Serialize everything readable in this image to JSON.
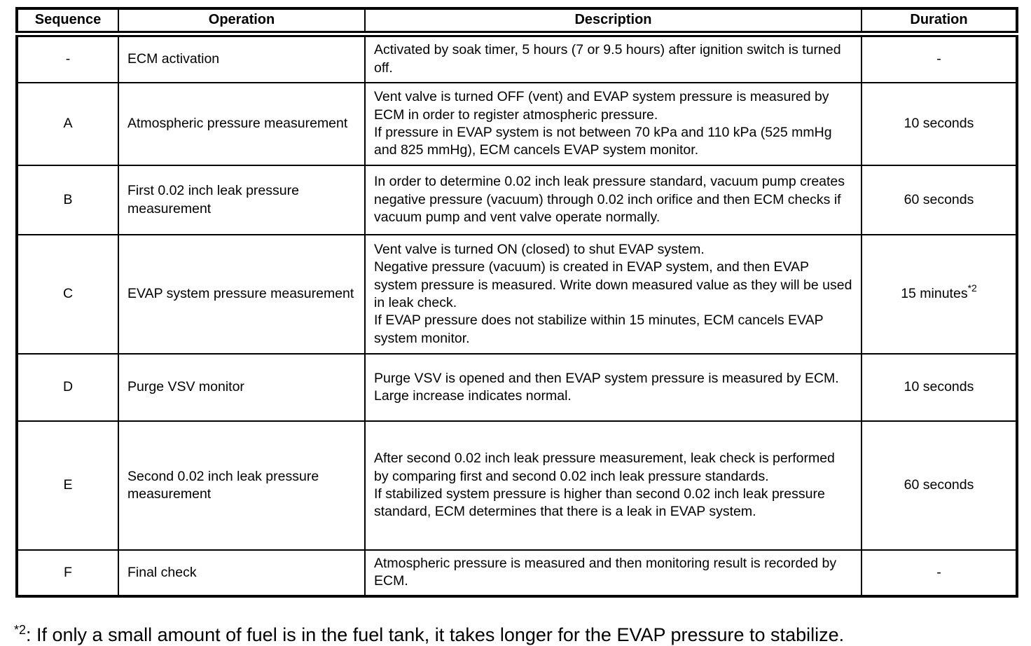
{
  "table": {
    "columns": [
      "Sequence",
      "Operation",
      "Description",
      "Duration"
    ],
    "rows": [
      {
        "sequence": "-",
        "operation": "ECM activation",
        "description": "Activated by soak timer, 5 hours (7 or 9.5 hours) after ignition switch is turned off.",
        "duration": {
          "text": "-",
          "sup": ""
        }
      },
      {
        "sequence": "A",
        "operation": "Atmospheric pressure measurement",
        "description": "Vent valve is turned OFF (vent) and EVAP system pressure is measured by ECM in order to register atmospheric pressure.\nIf pressure in EVAP system is not between 70 kPa and 110 kPa (525 mmHg and 825 mmHg), ECM cancels EVAP system monitor.",
        "duration": {
          "text": "10 seconds",
          "sup": ""
        }
      },
      {
        "sequence": "B",
        "operation": "First 0.02 inch leak pressure measurement",
        "description": "In order to determine 0.02 inch leak pressure standard, vacuum pump creates negative pressure (vacuum) through 0.02 inch orifice and then ECM checks if vacuum pump and vent valve operate normally.",
        "duration": {
          "text": "60 seconds",
          "sup": ""
        }
      },
      {
        "sequence": "C",
        "operation": "EVAP system pressure measurement",
        "description": "Vent valve is turned ON (closed) to shut EVAP system.\nNegative pressure (vacuum) is created in EVAP system, and then EVAP system pressure is measured. Write down measured value as they will be used in leak check.\nIf EVAP pressure does not stabilize within 15 minutes, ECM cancels EVAP system monitor.",
        "duration": {
          "text": "15 minutes",
          "sup": "*2"
        }
      },
      {
        "sequence": "D",
        "operation": "Purge VSV monitor",
        "description": "Purge VSV is opened and then EVAP system pressure is measured by ECM.\nLarge increase indicates normal.",
        "duration": {
          "text": "10 seconds",
          "sup": ""
        }
      },
      {
        "sequence": "E",
        "operation": "Second 0.02 inch leak pressure measurement",
        "description": "After second 0.02 inch leak pressure measurement, leak check is performed by comparing first and second 0.02 inch leak pressure standards.\nIf stabilized system pressure is higher than second 0.02 inch leak pressure standard, ECM determines that there is a leak in EVAP system.",
        "duration": {
          "text": "60 seconds",
          "sup": ""
        }
      },
      {
        "sequence": "F",
        "operation": "Final check",
        "description": "Atmospheric pressure is measured and then monitoring result is recorded by ECM.",
        "duration": {
          "text": "-",
          "sup": ""
        }
      }
    ]
  },
  "footnote": {
    "marker": "*2",
    "text": ": If only a small amount of fuel is in the fuel tank, it takes longer for the EVAP pressure to stabilize."
  }
}
